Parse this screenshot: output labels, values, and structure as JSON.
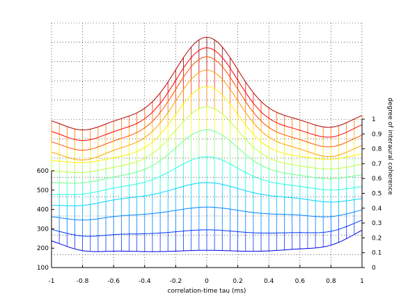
{
  "chart_data": {
    "type": "mesh",
    "xlabel": "correlation-time tau (ms)",
    "ylabel": "",
    "zlabel": "degree of interaural coherence",
    "xlim": [
      -1,
      1
    ],
    "x_ticks": [
      "-1",
      "-0.8",
      "-0.6",
      "-0.4",
      "-0.2",
      "0",
      "0.2",
      "0.4",
      "0.6",
      "0.8",
      "1"
    ],
    "y_ticks": [
      "100",
      "200",
      "300",
      "400",
      "500",
      "600"
    ],
    "z_ticks": [
      "0",
      "0.1",
      "0.2",
      "0.3",
      "0.4",
      "0.5",
      "0.6",
      "0.7",
      "0.8",
      "0.9",
      "1"
    ],
    "grid": true,
    "mesh_rows": [
      {
        "y": 200,
        "peak": 0.03,
        "ends": [
          0.2,
          0.28
        ],
        "base": 0.09,
        "mid": 0.1
      },
      {
        "y": 250,
        "peak": 0.06,
        "ends": [
          0.25,
          0.32
        ],
        "base": 0.1,
        "mid": 0.2
      },
      {
        "y": 300,
        "peak": 0.1,
        "ends": [
          0.31,
          0.36
        ],
        "base": 0.15,
        "mid": 0.31
      },
      {
        "y": 350,
        "peak": 0.18,
        "ends": [
          0.36,
          0.41
        ],
        "base": 0.23,
        "mid": 0.41
      },
      {
        "y": 400,
        "peak": 0.35,
        "ends": [
          0.41,
          0.47
        ],
        "base": 0.31,
        "mid": 0.47
      },
      {
        "y": 450,
        "peak": 0.55,
        "ends": [
          0.47,
          0.53
        ],
        "base": 0.39,
        "mid": 0.52
      },
      {
        "y": 500,
        "peak": 0.72,
        "ends": [
          0.53,
          0.58
        ],
        "base": 0.48,
        "mid": 0.56
      },
      {
        "y": 550,
        "peak": 0.86,
        "ends": [
          0.58,
          0.63
        ],
        "base": 0.58,
        "mid": 0.6
      },
      {
        "y": 600,
        "peak": 0.95,
        "ends": [
          0.63,
          0.68
        ],
        "base": 0.68,
        "mid": 0.64
      },
      {
        "y": 650,
        "peak": 1.0,
        "ends": [
          0.68,
          0.73
        ],
        "base": 0.78,
        "mid": 0.68
      },
      {
        "y": 700,
        "peak": 1.0,
        "ends": [
          0.73,
          0.78
        ],
        "base": 0.88,
        "mid": 0.72
      },
      {
        "y": 750,
        "peak": 1.0,
        "ends": [
          0.78,
          0.82
        ],
        "base": 0.98,
        "mid": 0.77
      }
    ],
    "colormap": "jet"
  }
}
